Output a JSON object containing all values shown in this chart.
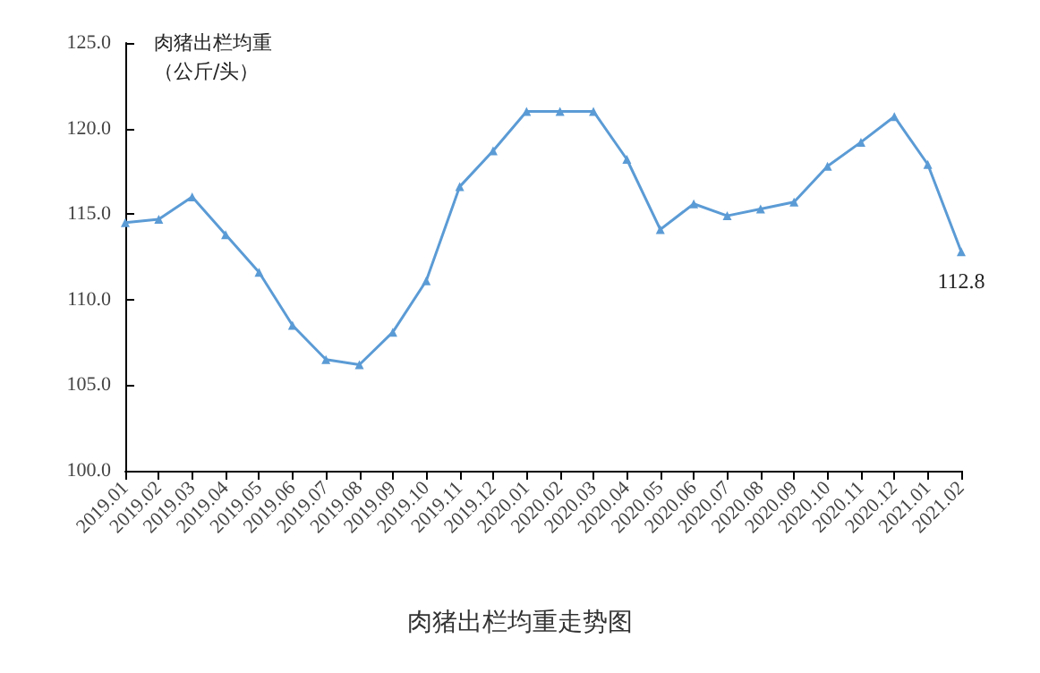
{
  "chart_data": {
    "type": "line",
    "title": "肉猪出栏均重走势图",
    "ylabel": "肉猪出栏均重（公斤/头）",
    "categories": [
      "2019.01",
      "2019.02",
      "2019.03",
      "2019.04",
      "2019.05",
      "2019.06",
      "2019.07",
      "2019.08",
      "2019.09",
      "2019.10",
      "2019.11",
      "2019.12",
      "2020.01",
      "2020.02",
      "2020.03",
      "2020.04",
      "2020.05",
      "2020.06",
      "2020.07",
      "2020.08",
      "2020.09",
      "2020.10",
      "2020.11",
      "2020.12",
      "2021.01",
      "2021.02"
    ],
    "series": [
      {
        "color": "#5b9bd5",
        "values": [
          114.5,
          114.7,
          116.0,
          113.8,
          111.6,
          108.5,
          106.5,
          106.2,
          108.1,
          111.1,
          116.6,
          118.7,
          121.0,
          121.0,
          121.0,
          118.2,
          114.1,
          115.6,
          114.9,
          115.3,
          115.7,
          117.8,
          119.2,
          120.7,
          117.9,
          112.8
        ],
        "value_labels": [
          null,
          null,
          null,
          null,
          null,
          null,
          null,
          null,
          null,
          null,
          null,
          null,
          null,
          null,
          null,
          null,
          null,
          null,
          null,
          null,
          null,
          null,
          null,
          null,
          null,
          "112.8"
        ]
      }
    ],
    "ylim": [
      100,
      125
    ],
    "yticks": [
      {
        "value": 100,
        "label": "100.0"
      },
      {
        "value": 105,
        "label": "105.0"
      },
      {
        "value": 110,
        "label": "110.0"
      },
      {
        "value": 115,
        "label": "115.0"
      },
      {
        "value": 120,
        "label": "120.0"
      },
      {
        "value": 125,
        "label": "125.0"
      }
    ],
    "grid": false,
    "marker": "triangle",
    "line_style": "solid"
  }
}
